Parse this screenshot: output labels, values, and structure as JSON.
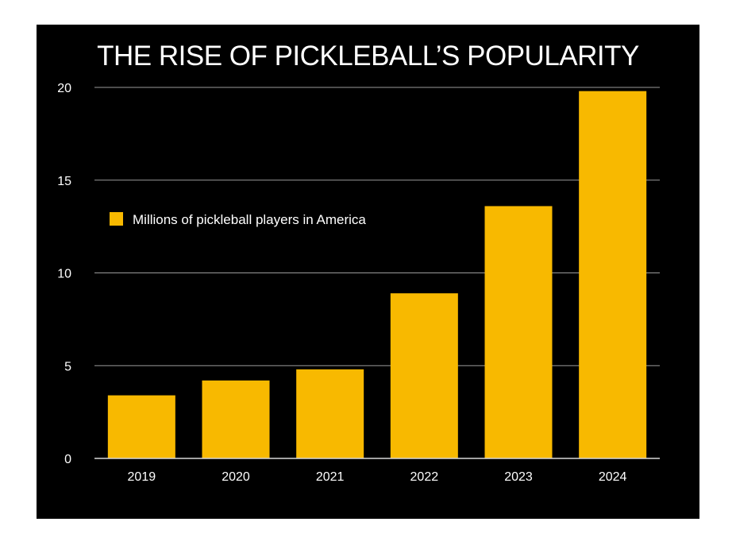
{
  "chart_data": {
    "type": "bar",
    "title": "THE RISE OF PICKLEBALL’S POPULARITY",
    "xlabel": "",
    "ylabel": "",
    "categories": [
      "2019",
      "2020",
      "2021",
      "2022",
      "2023",
      "2024"
    ],
    "series": [
      {
        "name": "Millions of pickleball players in America",
        "values": [
          3.4,
          4.2,
          4.8,
          8.9,
          13.6,
          19.8
        ]
      }
    ],
    "ylim": [
      0,
      20
    ],
    "yticks": [
      "0",
      "5",
      "10",
      "15",
      "20"
    ],
    "grid": true,
    "legend_position": "upper-left",
    "colors": {
      "bar": "#f8b900",
      "background": "#000000",
      "gridline": "#9a9a9a",
      "text": "#ffffff"
    }
  }
}
